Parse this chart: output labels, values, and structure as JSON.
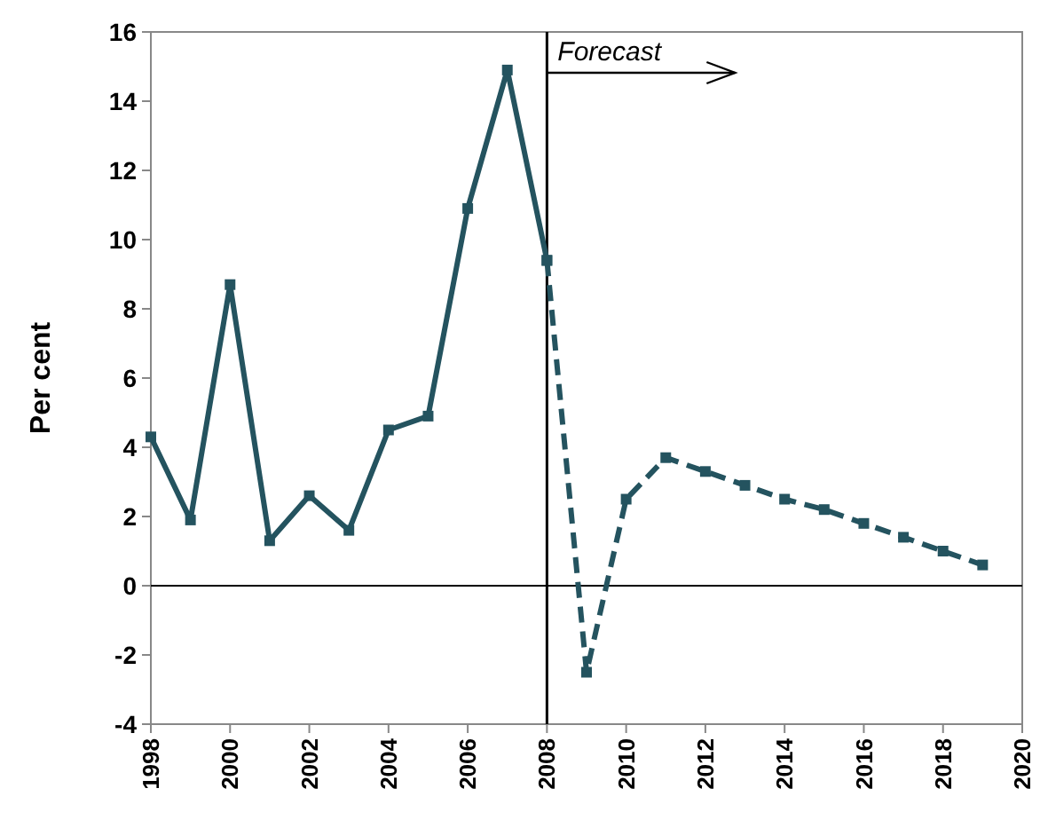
{
  "chart_data": {
    "type": "line",
    "ylabel": "Per cent",
    "marker": "square",
    "grid": false,
    "xlim": [
      1998,
      2020
    ],
    "xticks": [
      1998,
      2000,
      2002,
      2004,
      2006,
      2008,
      2010,
      2012,
      2014,
      2016,
      2018,
      2020
    ],
    "ylim": [
      -4,
      16
    ],
    "yticks": [
      -4,
      -2,
      0,
      2,
      4,
      6,
      8,
      10,
      12,
      14,
      16
    ],
    "series": [
      {
        "color": "#24535f",
        "line_style": "solid",
        "x": [
          1998,
          1999,
          2000,
          2001,
          2002,
          2003,
          2004,
          2005,
          2006,
          2007,
          2008
        ],
        "values": [
          4.3,
          1.9,
          8.7,
          1.3,
          2.6,
          1.6,
          4.5,
          4.9,
          10.9,
          14.9,
          9.4
        ]
      },
      {
        "color": "#24535f",
        "line_style": "dashed",
        "x": [
          2008,
          2009,
          2010,
          2011,
          2012,
          2013,
          2014,
          2015,
          2016,
          2017,
          2018,
          2019
        ],
        "values": [
          9.4,
          -2.5,
          2.5,
          3.7,
          3.3,
          2.9,
          2.5,
          2.2,
          1.8,
          1.4,
          1.0,
          0.6
        ]
      }
    ],
    "ref_lines": [
      {
        "axis": "y",
        "value": 0,
        "color": "#000000"
      },
      {
        "axis": "x",
        "value": 2008,
        "color": "#000000"
      }
    ],
    "annotations": [
      {
        "text": "Forecast",
        "x": 2008,
        "y": 16
      }
    ]
  }
}
